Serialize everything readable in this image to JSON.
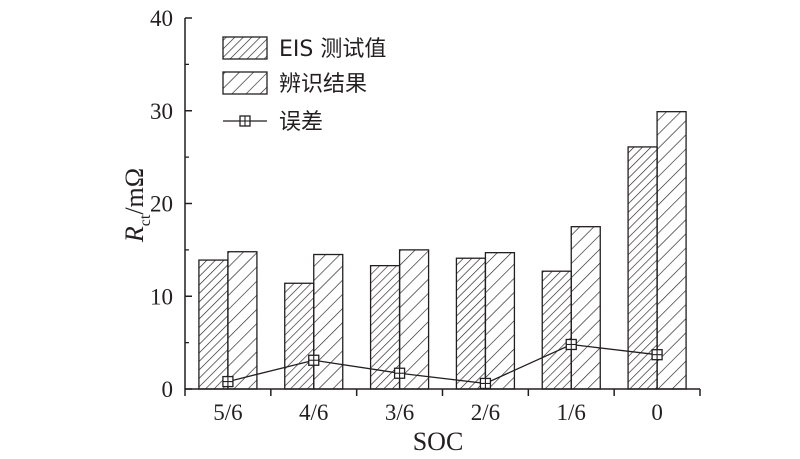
{
  "chart_data": {
    "type": "bar",
    "categories": [
      "5/6",
      "4/6",
      "3/6",
      "2/6",
      "1/6",
      "0"
    ],
    "series": [
      {
        "name": "EIS 测试值",
        "kind": "bar",
        "pattern": "dense-hatch",
        "values": [
          13.9,
          11.4,
          13.3,
          14.1,
          12.7,
          26.1
        ]
      },
      {
        "name": "辨识结果",
        "kind": "bar",
        "pattern": "sparse-hatch",
        "values": [
          14.8,
          14.5,
          15.0,
          14.7,
          17.5,
          29.9
        ]
      },
      {
        "name": "误差",
        "kind": "line",
        "marker": "square-cross",
        "values": [
          0.8,
          3.1,
          1.7,
          0.6,
          4.8,
          3.7
        ]
      }
    ],
    "xlabel": "SOC",
    "ylabel": {
      "main": "R",
      "sub": "ct",
      "rest": "/mΩ"
    },
    "ylim": [
      0,
      40
    ],
    "yticks": [
      "0",
      "10",
      "20",
      "30",
      "40"
    ],
    "grid": false,
    "legend_position": "top-left",
    "colors": {
      "ink": "#231f20",
      "fill": "#ffffff"
    }
  }
}
